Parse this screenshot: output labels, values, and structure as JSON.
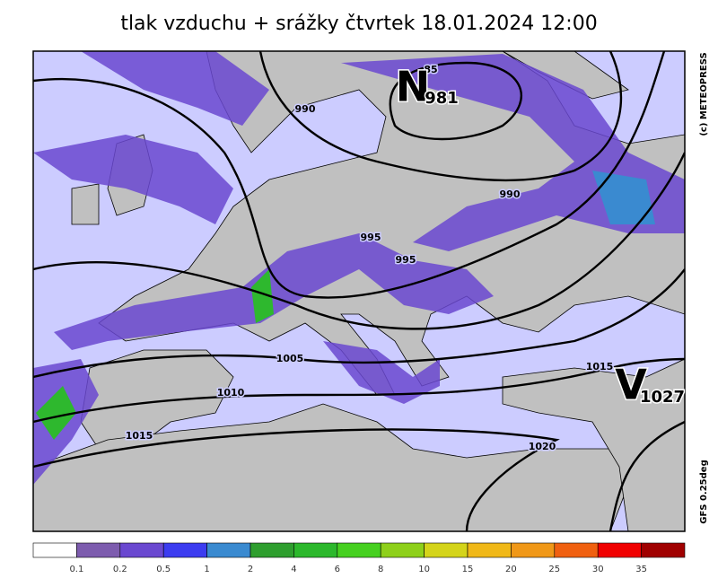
{
  "title": "tlak vzduchu + srážky čtvrtek 18.01.2024 12:00",
  "credit": "(c) METEOPRESS",
  "model": "GFS 0.25deg",
  "pressure_labels": [
    "85",
    "990",
    "990",
    "995",
    "995",
    "1005",
    "1010",
    "1015",
    "1015",
    "1020"
  ],
  "centers": [
    {
      "symbol": "N",
      "value": "981"
    },
    {
      "symbol": "V",
      "value": "1027"
    }
  ],
  "legend": {
    "colors": [
      "#ffffff",
      "#7d5cae",
      "#6a48d0",
      "#3c3cf0",
      "#3a8ad0",
      "#2e9e2e",
      "#2cb82c",
      "#46d020",
      "#8ed01a",
      "#d4d41a",
      "#f0b818",
      "#f09818",
      "#f06010",
      "#f00000",
      "#a00000"
    ],
    "labels": [
      0.1,
      0.2,
      0.5,
      1,
      2,
      4,
      6,
      8,
      10,
      15,
      20,
      25,
      30,
      35
    ]
  }
}
